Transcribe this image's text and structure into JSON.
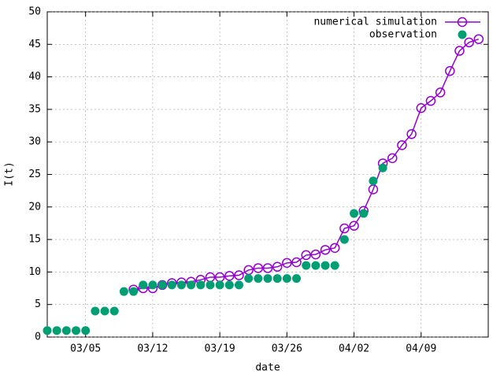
{
  "chart_data": {
    "type": "line",
    "xlabel": "date",
    "ylabel": "I(t)",
    "x": [
      "03/01",
      "03/02",
      "03/03",
      "03/04",
      "03/05",
      "03/06",
      "03/07",
      "03/08",
      "03/09",
      "03/10",
      "03/11",
      "03/12",
      "03/13",
      "03/14",
      "03/15",
      "03/16",
      "03/17",
      "03/18",
      "03/19",
      "03/20",
      "03/21",
      "03/22",
      "03/23",
      "03/24",
      "03/25",
      "03/26",
      "03/27",
      "03/28",
      "03/29",
      "03/30",
      "03/31",
      "04/01",
      "04/02",
      "04/03",
      "04/04",
      "04/05",
      "04/06",
      "04/07",
      "04/08",
      "04/09",
      "04/10",
      "04/11",
      "04/12",
      "04/13",
      "04/14",
      "04/15"
    ],
    "series": [
      {
        "name": "numerical simulation",
        "color": "#9400d3",
        "marker": "open-circle",
        "line": true,
        "values": [
          null,
          null,
          null,
          null,
          null,
          null,
          null,
          null,
          null,
          7.3,
          7.5,
          7.5,
          8.0,
          8.3,
          8.4,
          8.5,
          8.8,
          9.2,
          9.2,
          9.4,
          9.5,
          10.3,
          10.6,
          10.6,
          10.8,
          11.4,
          11.5,
          12.6,
          12.7,
          13.4,
          13.7,
          16.7,
          17.1,
          19.4,
          22.7,
          26.7,
          27.5,
          29.5,
          31.2,
          35.2,
          36.3,
          37.6,
          40.9,
          44.0,
          45.3,
          45.8
        ]
      },
      {
        "name": "observation",
        "color": "#009e73",
        "marker": "filled-circle",
        "line": false,
        "values": [
          1,
          1,
          1,
          1,
          1,
          4,
          4,
          4,
          7,
          7,
          8,
          8,
          8,
          8,
          8,
          8,
          8,
          8,
          8,
          8,
          8,
          9,
          9,
          9,
          9,
          9,
          9,
          11,
          11,
          11,
          11,
          15,
          19,
          19,
          24,
          26,
          null,
          null,
          null,
          null,
          null,
          null,
          null,
          null,
          null,
          null
        ]
      }
    ],
    "xlim": [
      "03/01",
      "04/16"
    ],
    "xticks": [
      "03/05",
      "03/12",
      "03/19",
      "03/26",
      "04/02",
      "04/09"
    ],
    "ylim": [
      0,
      50
    ],
    "yticks": [
      0,
      5,
      10,
      15,
      20,
      25,
      30,
      35,
      40,
      45,
      50
    ],
    "grid": true,
    "legend": "top-right"
  }
}
